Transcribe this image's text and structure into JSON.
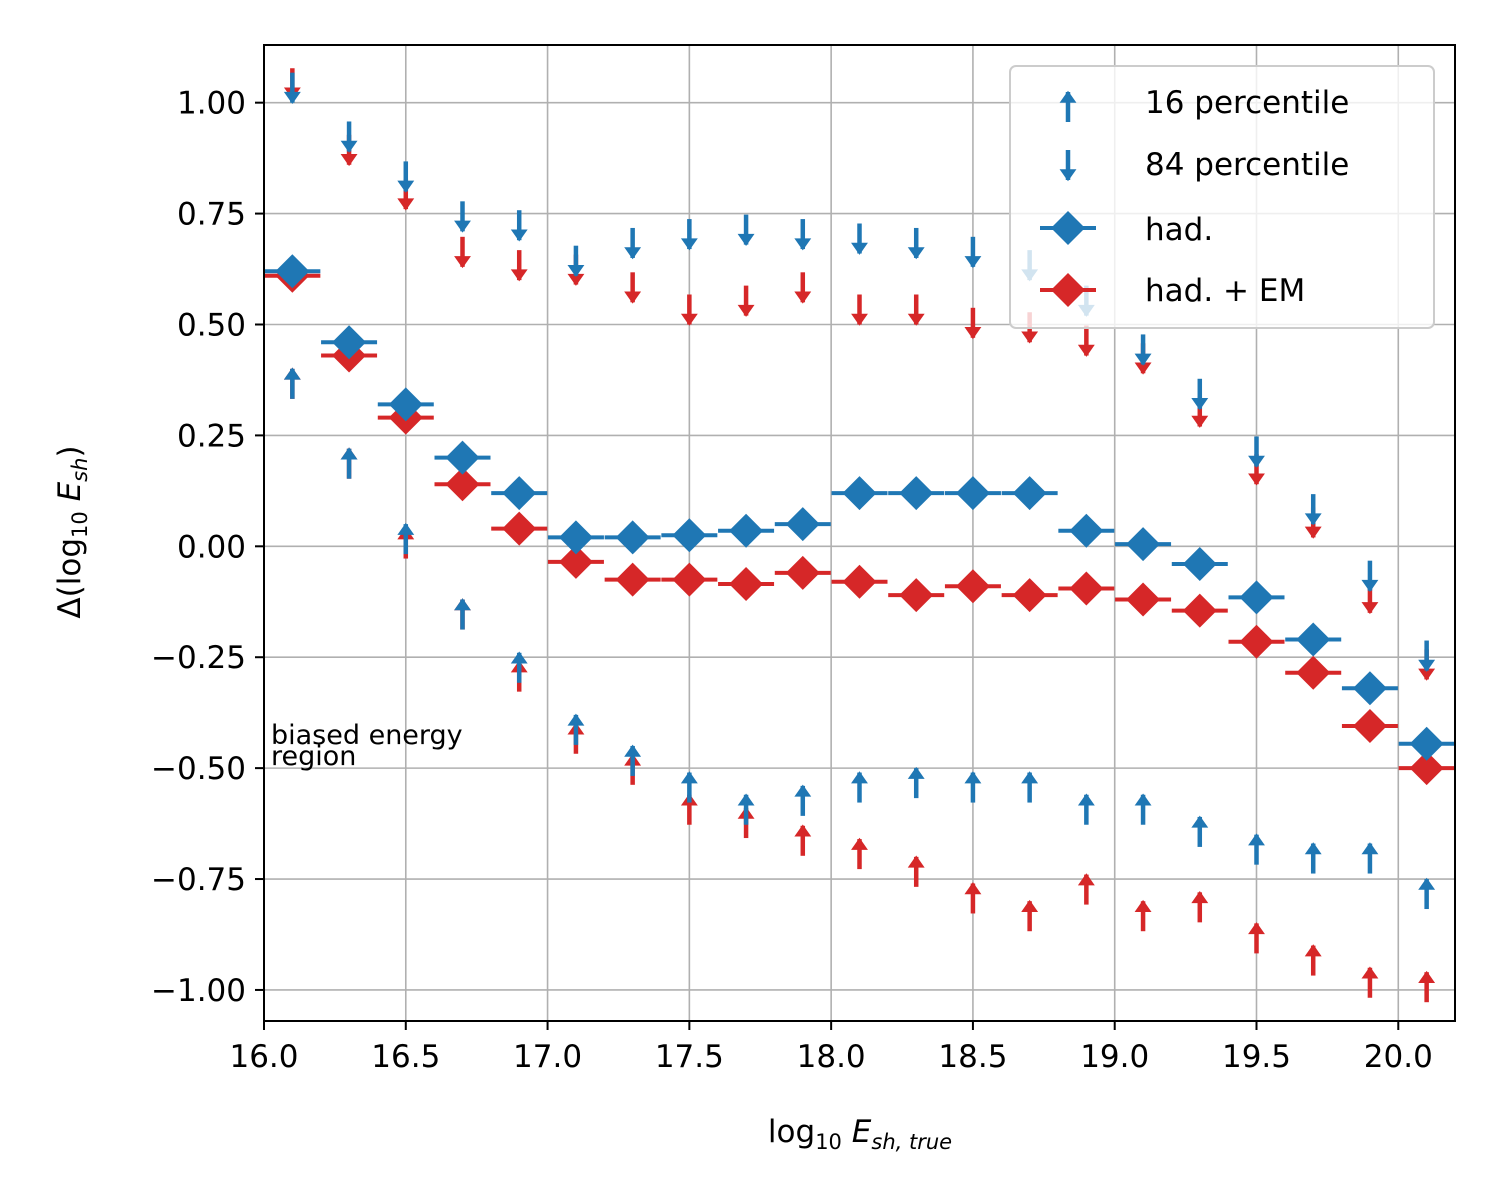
{
  "chart_data": {
    "type": "scatter",
    "title": "",
    "xlabel": {
      "base": "log",
      "sub1": "10",
      "var": "E",
      "sub2": "sh, true"
    },
    "ylabel": {
      "prefix": "Δ(log",
      "sub1": "10",
      "var": "E",
      "sub2": "sh",
      "suffix": ")"
    },
    "xlim": [
      16.0,
      20.2
    ],
    "ylim": [
      -1.07,
      1.13
    ],
    "grid": true,
    "legend_position": "top-right",
    "xticks": [
      16.0,
      16.5,
      17.0,
      17.5,
      18.0,
      18.5,
      19.0,
      19.5,
      20.0
    ],
    "xtick_labels": [
      "16.0",
      "16.5",
      "17.0",
      "17.5",
      "18.0",
      "18.5",
      "19.0",
      "19.5",
      "20.0"
    ],
    "yticks": [
      1.0,
      0.75,
      0.5,
      0.25,
      0.0,
      -0.25,
      -0.5,
      -0.75,
      -1.0
    ],
    "ytick_labels": [
      "1.00",
      "0.75",
      "0.50",
      "0.25",
      "0.00",
      "−0.25",
      "−0.50",
      "−0.75",
      "−1.00"
    ],
    "annotation": {
      "line1": "biased energy",
      "line2": "region"
    },
    "legend": [
      {
        "label": "16 percentile",
        "marker": "arrow-up",
        "color": "#1f77b4"
      },
      {
        "label": "84 percentile",
        "marker": "arrow-down",
        "color": "#1f77b4"
      },
      {
        "label": "had.",
        "marker": "diamond",
        "color": "#1f77b4"
      },
      {
        "label": "had. + EM",
        "marker": "diamond",
        "color": "#d62728"
      }
    ],
    "x": [
      16.1,
      16.3,
      16.5,
      16.7,
      16.9,
      17.1,
      17.3,
      17.5,
      17.7,
      17.9,
      18.1,
      18.3,
      18.5,
      18.7,
      18.9,
      19.1,
      19.3,
      19.5,
      19.7,
      19.9,
      20.1
    ],
    "series": [
      {
        "name": "had.",
        "color": "#1f77b4",
        "median": [
          0.62,
          0.46,
          0.32,
          0.2,
          0.12,
          0.02,
          0.02,
          0.025,
          0.035,
          0.05,
          0.12,
          0.12,
          0.12,
          0.12,
          0.035,
          0.005,
          -0.04,
          -0.115,
          -0.21,
          -0.32,
          -0.445
        ],
        "p16": [
          0.4,
          0.22,
          0.05,
          -0.12,
          -0.24,
          -0.38,
          -0.45,
          -0.51,
          -0.56,
          -0.54,
          -0.51,
          -0.5,
          -0.51,
          -0.51,
          -0.56,
          -0.56,
          -0.61,
          -0.65,
          -0.67,
          -0.67,
          -0.75
        ],
        "p84": [
          1.0,
          0.89,
          0.8,
          0.71,
          0.69,
          0.61,
          0.65,
          0.67,
          0.68,
          0.67,
          0.66,
          0.65,
          0.63,
          0.6,
          0.52,
          0.41,
          0.31,
          0.18,
          0.05,
          -0.1,
          -0.28
        ]
      },
      {
        "name": "had. + EM",
        "color": "#d62728",
        "median": [
          0.61,
          0.43,
          0.29,
          0.14,
          0.04,
          -0.035,
          -0.075,
          -0.075,
          -0.085,
          -0.06,
          -0.08,
          -0.11,
          -0.09,
          -0.11,
          -0.095,
          -0.12,
          -0.145,
          -0.215,
          -0.285,
          -0.405,
          -0.5
        ],
        "p16": [
          0.4,
          0.22,
          0.04,
          -0.12,
          -0.26,
          -0.4,
          -0.47,
          -0.56,
          -0.59,
          -0.63,
          -0.66,
          -0.7,
          -0.76,
          -0.8,
          -0.74,
          -0.8,
          -0.78,
          -0.85,
          -0.9,
          -0.95,
          -0.96
        ],
        "p84": [
          1.01,
          0.86,
          0.76,
          0.63,
          0.6,
          0.59,
          0.55,
          0.5,
          0.52,
          0.55,
          0.5,
          0.5,
          0.47,
          0.46,
          0.43,
          0.39,
          0.27,
          0.14,
          0.02,
          -0.15,
          -0.3
        ]
      }
    ]
  }
}
